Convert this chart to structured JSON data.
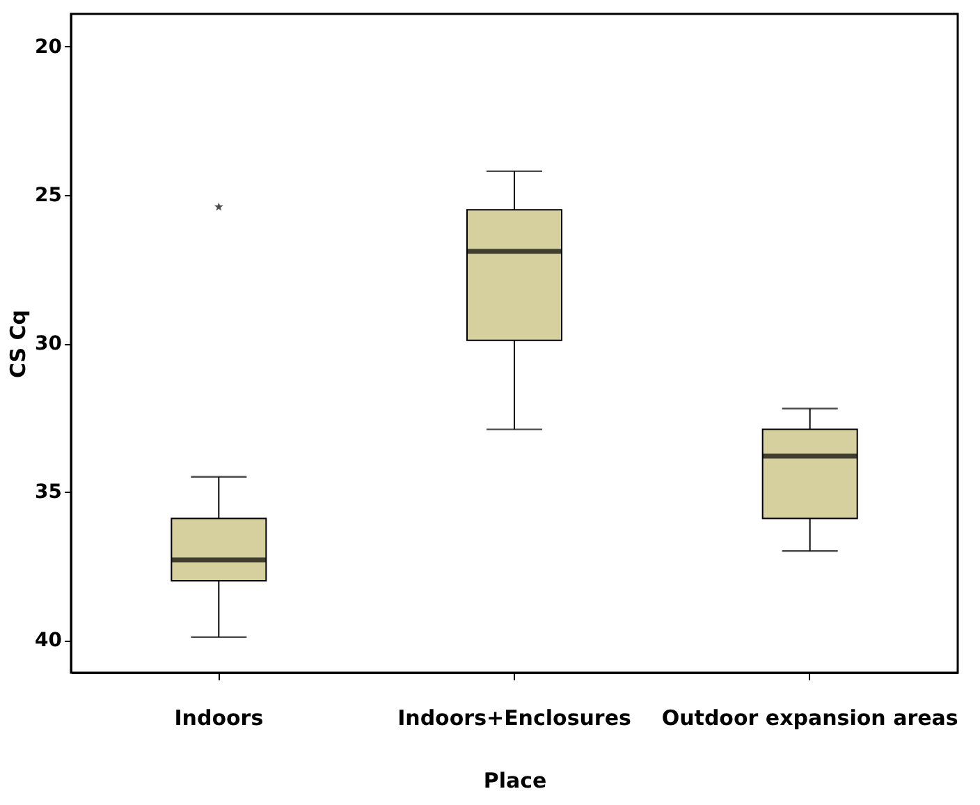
{
  "chart_data": {
    "type": "box",
    "xlabel": "Place",
    "ylabel": "CS Cq",
    "categories": [
      "Indoors",
      "Indoors+Enclosures",
      "Outdoor expansion areas"
    ],
    "series": [
      {
        "color": "#d6cf9e",
        "boxes": [
          {
            "low": 34.5,
            "q1": 35.9,
            "median": 37.3,
            "q3": 38.0,
            "high": 39.9,
            "outliers": [
              25.4
            ]
          },
          {
            "low": 24.2,
            "q1": 25.5,
            "median": 26.9,
            "q3": 29.9,
            "high": 32.9
          },
          {
            "low": 32.2,
            "q1": 32.9,
            "median": 33.8,
            "q3": 35.9,
            "high": 37.0
          }
        ]
      }
    ],
    "ylim": [
      41.1,
      18.9
    ],
    "yticks": [
      20,
      25,
      30,
      35,
      40
    ],
    "grid": false,
    "marker": "star"
  }
}
